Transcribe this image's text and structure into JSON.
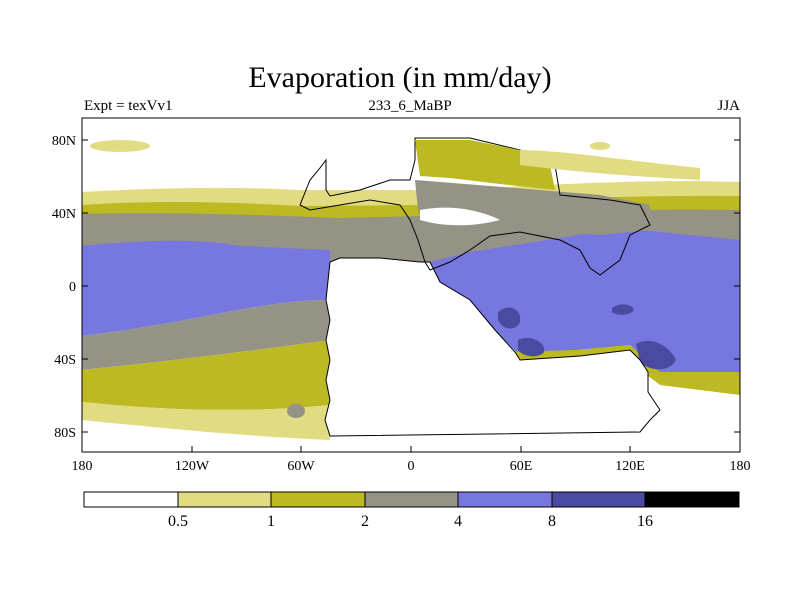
{
  "title": "Evaporation (in mm/day)",
  "subtitle_left": "Expt = texVv1",
  "subtitle_center": "233_6_MaBP",
  "subtitle_right": "JJA",
  "lat_labels": [
    "80N",
    "40N",
    "0",
    "40S",
    "80S"
  ],
  "lon_labels": [
    "180",
    "120W",
    "60W",
    "0",
    "60E",
    "120E",
    "180"
  ],
  "colorbar": {
    "labels": [
      "0.5",
      "1",
      "2",
      "4",
      "8",
      "16"
    ],
    "colors": [
      "#ffffff",
      "#e1dc82",
      "#bcb922",
      "#959386",
      "#7777e0",
      "#4a4aa0",
      "#000000"
    ]
  },
  "colors": {
    "bg": "#ffffff",
    "c05": "#e1dc82",
    "c1": "#bcb922",
    "c2": "#959386",
    "c4": "#7777e0",
    "c8": "#4a4aa0",
    "land_outline": "#000000"
  }
}
